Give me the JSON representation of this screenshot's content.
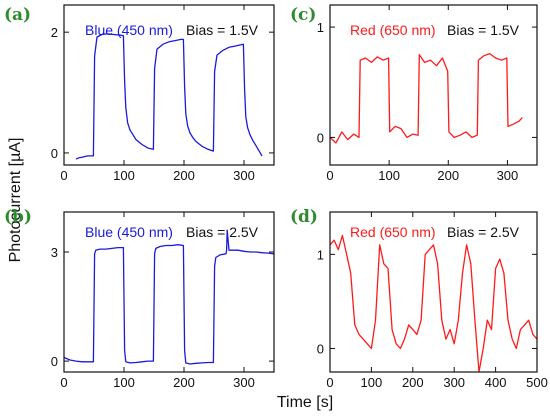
{
  "figure": {
    "ylabel": "Photocurrent [µA]",
    "xlabel": "Time [s]"
  },
  "chart_data": [
    {
      "panel": "(a)",
      "type": "line",
      "annotation": "Blue (450 nm)",
      "bias": "Bias = 1.5V",
      "color": "#1a1adc",
      "xlim": [
        0,
        350
      ],
      "ylim": [
        -0.2,
        2.45
      ],
      "xticks": [
        0,
        100,
        200,
        300
      ],
      "yticks": [
        0,
        2
      ],
      "show_xtick_labels": true,
      "series": [
        {
          "x": [
            20,
            25,
            30,
            35,
            40,
            45,
            49,
            51,
            55,
            65,
            75,
            85,
            95,
            99,
            101,
            103,
            106,
            110,
            115,
            120,
            130,
            140,
            149,
            151,
            155,
            165,
            175,
            185,
            195,
            199,
            201,
            203,
            206,
            210,
            215,
            220,
            230,
            240,
            249,
            251,
            255,
            265,
            275,
            285,
            295,
            299,
            301,
            303,
            306,
            310,
            315,
            320,
            330
          ],
          "y": [
            -0.1,
            -0.08,
            -0.07,
            -0.06,
            -0.05,
            -0.05,
            -0.05,
            1.6,
            1.92,
            1.97,
            1.97,
            1.96,
            1.95,
            1.94,
            1.2,
            0.75,
            0.5,
            0.38,
            0.3,
            0.22,
            0.14,
            0.08,
            0.06,
            1.4,
            1.72,
            1.8,
            1.84,
            1.86,
            1.88,
            1.88,
            1.1,
            0.65,
            0.45,
            0.33,
            0.25,
            0.19,
            0.11,
            0.06,
            0.03,
            1.35,
            1.62,
            1.7,
            1.75,
            1.77,
            1.79,
            1.8,
            1.05,
            0.6,
            0.42,
            0.3,
            0.2,
            0.12,
            -0.05
          ]
        }
      ]
    },
    {
      "panel": "(b)",
      "type": "line",
      "annotation": "Blue (450 nm)",
      "bias": "Bias = 2.5V",
      "color": "#1a1adc",
      "xlim": [
        0,
        350
      ],
      "ylim": [
        -0.3,
        4.1
      ],
      "xticks": [
        0,
        100,
        200,
        300
      ],
      "yticks": [
        0,
        3
      ],
      "show_xtick_labels": true,
      "series": [
        {
          "x": [
            0,
            10,
            20,
            30,
            40,
            49,
            51,
            53,
            60,
            70,
            80,
            90,
            99,
            101,
            103,
            110,
            120,
            130,
            140,
            149,
            151,
            153,
            160,
            170,
            180,
            190,
            199,
            201,
            203,
            210,
            220,
            230,
            240,
            249,
            251,
            253,
            260,
            270,
            271,
            272,
            275,
            280,
            290,
            300,
            310,
            320,
            330,
            340,
            350
          ],
          "y": [
            0.1,
            0.03,
            0.0,
            -0.02,
            -0.02,
            -0.02,
            2.95,
            3.05,
            3.08,
            3.08,
            3.1,
            3.12,
            3.12,
            0.3,
            -0.02,
            -0.05,
            -0.04,
            -0.02,
            0.0,
            0.0,
            2.95,
            3.1,
            3.15,
            3.18,
            3.18,
            3.2,
            3.18,
            0.3,
            -0.05,
            -0.08,
            -0.06,
            -0.05,
            -0.04,
            -0.04,
            2.6,
            2.85,
            2.92,
            2.95,
            3.05,
            3.6,
            3.05,
            3.05,
            3.05,
            3.02,
            3.0,
            3.0,
            2.98,
            2.97,
            2.95
          ]
        }
      ]
    },
    {
      "panel": "(c)",
      "type": "line",
      "annotation": "Red (650 nm)",
      "bias": "Bias = 1.5V",
      "color": "#ff1a1a",
      "xlim": [
        0,
        350
      ],
      "ylim": [
        -0.25,
        1.2
      ],
      "xticks": [
        0,
        100,
        200,
        300
      ],
      "yticks": [
        0,
        1
      ],
      "show_xtick_labels": true,
      "series": [
        {
          "x": [
            0,
            10,
            20,
            30,
            40,
            49,
            51,
            60,
            70,
            80,
            90,
            99,
            101,
            110,
            120,
            130,
            140,
            149,
            151,
            160,
            170,
            180,
            190,
            199,
            201,
            210,
            220,
            230,
            240,
            249,
            251,
            260,
            270,
            280,
            290,
            299,
            301,
            310,
            320,
            325
          ],
          "y": [
            0.0,
            -0.05,
            0.05,
            -0.02,
            0.03,
            0.0,
            0.7,
            0.72,
            0.68,
            0.73,
            0.7,
            0.72,
            0.05,
            0.1,
            0.08,
            0.0,
            0.03,
            0.02,
            0.75,
            0.68,
            0.7,
            0.65,
            0.72,
            0.6,
            0.05,
            0.0,
            0.02,
            0.05,
            0.0,
            0.02,
            0.7,
            0.74,
            0.76,
            0.72,
            0.7,
            0.72,
            0.1,
            0.12,
            0.15,
            0.18
          ]
        }
      ]
    },
    {
      "panel": "(d)",
      "type": "line",
      "annotation": "Red (650 nm)",
      "bias": "Bias = 2.5V",
      "color": "#ff1a1a",
      "xlim": [
        0,
        500
      ],
      "ylim": [
        -0.25,
        1.45
      ],
      "xticks": [
        0,
        100,
        200,
        300,
        400,
        500
      ],
      "yticks": [
        0,
        1
      ],
      "show_xtick_labels": true,
      "series": [
        {
          "x": [
            0,
            10,
            20,
            30,
            40,
            50,
            60,
            70,
            80,
            90,
            100,
            110,
            120,
            130,
            140,
            150,
            160,
            170,
            180,
            190,
            200,
            210,
            220,
            230,
            240,
            250,
            260,
            270,
            280,
            290,
            300,
            310,
            320,
            330,
            340,
            350,
            360,
            370,
            380,
            390,
            400,
            410,
            420,
            430,
            440,
            450,
            460,
            470,
            480,
            490,
            500
          ],
          "y": [
            1.1,
            1.15,
            1.05,
            1.2,
            1.0,
            0.8,
            0.25,
            0.15,
            0.1,
            0.05,
            0.0,
            0.3,
            1.1,
            0.9,
            0.85,
            0.2,
            0.05,
            0.0,
            0.1,
            0.25,
            0.2,
            0.15,
            0.3,
            1.0,
            1.05,
            1.1,
            0.9,
            0.3,
            0.1,
            0.2,
            0.05,
            0.3,
            0.8,
            1.1,
            0.9,
            0.3,
            -0.25,
            0.0,
            0.3,
            0.2,
            0.85,
            0.95,
            0.8,
            0.3,
            0.1,
            0.0,
            0.2,
            0.25,
            0.3,
            0.15,
            0.1
          ]
        }
      ]
    }
  ]
}
